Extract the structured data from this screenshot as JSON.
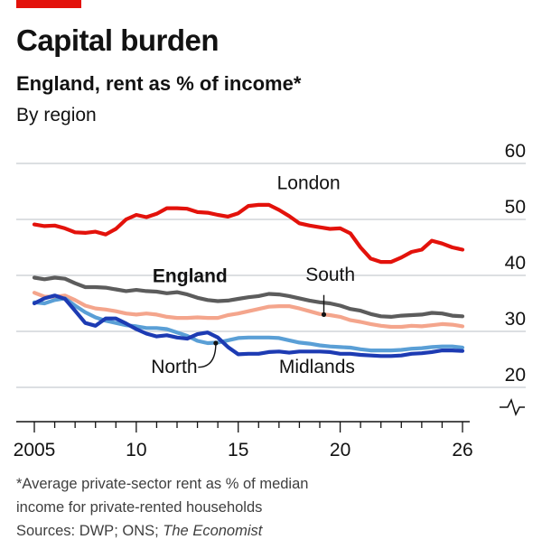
{
  "header": {
    "title": "Capital burden",
    "subtitle": "England, rent as % of income*",
    "subsubtitle": "By region"
  },
  "footnote": {
    "line1": "*Average private-sector rent as % of median",
    "line2": "income for private-rented households",
    "sources_prefix": "Sources: DWP; ONS; ",
    "sources_italic": "The Economist"
  },
  "chart_data": {
    "type": "line",
    "xlabel": "",
    "ylabel": "",
    "xlim": [
      2005,
      2026
    ],
    "ylim": [
      20,
      60
    ],
    "x_ticks": [
      2005,
      2006,
      2007,
      2008,
      2009,
      2010,
      2011,
      2012,
      2013,
      2014,
      2015,
      2016,
      2017,
      2018,
      2019,
      2020,
      2021,
      2022,
      2023,
      2024,
      2025,
      2026
    ],
    "x_tick_labels": [
      {
        "x": 2005,
        "label": "2005"
      },
      {
        "x": 2010,
        "label": "10"
      },
      {
        "x": 2015,
        "label": "15"
      },
      {
        "x": 2020,
        "label": "20"
      },
      {
        "x": 2026,
        "label": "26"
      }
    ],
    "y_ticks": [
      20,
      30,
      40,
      50,
      60
    ],
    "y_tick_labels": [
      "20",
      "30",
      "40",
      "50",
      "60"
    ],
    "grid": true,
    "series": [
      {
        "name": "London",
        "color": "#e3120b",
        "bold": false,
        "points": [
          [
            2005.0,
            49.1
          ],
          [
            2005.5,
            48.8
          ],
          [
            2006.0,
            48.9
          ],
          [
            2006.5,
            48.4
          ],
          [
            2007.0,
            47.7
          ],
          [
            2007.5,
            47.6
          ],
          [
            2008.0,
            47.8
          ],
          [
            2008.5,
            47.3
          ],
          [
            2009.0,
            48.3
          ],
          [
            2009.5,
            50.0
          ],
          [
            2010.0,
            50.8
          ],
          [
            2010.5,
            50.4
          ],
          [
            2011.0,
            51.0
          ],
          [
            2011.5,
            52.0
          ],
          [
            2012.0,
            52.0
          ],
          [
            2012.5,
            51.9
          ],
          [
            2013.0,
            51.3
          ],
          [
            2013.5,
            51.2
          ],
          [
            2014.0,
            50.8
          ],
          [
            2014.5,
            50.5
          ],
          [
            2015.0,
            51.1
          ],
          [
            2015.5,
            52.4
          ],
          [
            2016.0,
            52.6
          ],
          [
            2016.5,
            52.6
          ],
          [
            2017.0,
            51.7
          ],
          [
            2017.5,
            50.6
          ],
          [
            2018.0,
            49.3
          ],
          [
            2018.5,
            48.9
          ],
          [
            2019.0,
            48.6
          ],
          [
            2019.5,
            48.3
          ],
          [
            2020.0,
            48.4
          ],
          [
            2020.5,
            47.5
          ],
          [
            2021.0,
            45.0
          ],
          [
            2021.5,
            43.0
          ],
          [
            2022.0,
            42.4
          ],
          [
            2022.5,
            42.4
          ],
          [
            2023.0,
            43.2
          ],
          [
            2023.5,
            44.2
          ],
          [
            2024.0,
            44.6
          ],
          [
            2024.5,
            46.2
          ],
          [
            2025.0,
            45.7
          ],
          [
            2025.5,
            45.0
          ],
          [
            2026.0,
            44.6
          ]
        ]
      },
      {
        "name": "England",
        "color": "#5c5c5c",
        "bold": true,
        "points": [
          [
            2005.0,
            39.6
          ],
          [
            2005.5,
            39.3
          ],
          [
            2006.0,
            39.6
          ],
          [
            2006.5,
            39.4
          ],
          [
            2007.0,
            38.6
          ],
          [
            2007.5,
            37.9
          ],
          [
            2008.0,
            37.9
          ],
          [
            2008.5,
            37.8
          ],
          [
            2009.0,
            37.5
          ],
          [
            2009.5,
            37.2
          ],
          [
            2010.0,
            37.4
          ],
          [
            2010.5,
            37.2
          ],
          [
            2011.0,
            37.1
          ],
          [
            2011.5,
            36.8
          ],
          [
            2012.0,
            37.0
          ],
          [
            2012.5,
            36.6
          ],
          [
            2013.0,
            36.0
          ],
          [
            2013.5,
            35.6
          ],
          [
            2014.0,
            35.4
          ],
          [
            2014.5,
            35.5
          ],
          [
            2015.0,
            35.8
          ],
          [
            2015.5,
            36.1
          ],
          [
            2016.0,
            36.3
          ],
          [
            2016.5,
            36.7
          ],
          [
            2017.0,
            36.6
          ],
          [
            2017.5,
            36.3
          ],
          [
            2018.0,
            35.9
          ],
          [
            2018.5,
            35.5
          ],
          [
            2019.0,
            35.2
          ],
          [
            2019.5,
            35.0
          ],
          [
            2020.0,
            34.6
          ],
          [
            2020.5,
            34.0
          ],
          [
            2021.0,
            33.7
          ],
          [
            2021.5,
            33.1
          ],
          [
            2022.0,
            32.7
          ],
          [
            2022.5,
            32.6
          ],
          [
            2023.0,
            32.8
          ],
          [
            2023.5,
            32.9
          ],
          [
            2024.0,
            33.0
          ],
          [
            2024.5,
            33.3
          ],
          [
            2025.0,
            33.2
          ],
          [
            2025.5,
            32.8
          ],
          [
            2026.0,
            32.7
          ]
        ]
      },
      {
        "name": "South",
        "color": "#f4a58c",
        "bold": false,
        "points": [
          [
            2005.0,
            36.9
          ],
          [
            2005.5,
            36.2
          ],
          [
            2006.0,
            36.2
          ],
          [
            2006.5,
            36.4
          ],
          [
            2007.0,
            35.6
          ],
          [
            2007.5,
            34.6
          ],
          [
            2008.0,
            34.1
          ],
          [
            2008.5,
            33.9
          ],
          [
            2009.0,
            33.6
          ],
          [
            2009.5,
            33.2
          ],
          [
            2010.0,
            33.0
          ],
          [
            2010.5,
            33.2
          ],
          [
            2011.0,
            33.0
          ],
          [
            2011.5,
            32.6
          ],
          [
            2012.0,
            32.4
          ],
          [
            2012.5,
            32.4
          ],
          [
            2013.0,
            32.5
          ],
          [
            2013.5,
            32.4
          ],
          [
            2014.0,
            32.4
          ],
          [
            2014.5,
            32.9
          ],
          [
            2015.0,
            33.2
          ],
          [
            2015.5,
            33.6
          ],
          [
            2016.0,
            34.0
          ],
          [
            2016.5,
            34.4
          ],
          [
            2017.0,
            34.5
          ],
          [
            2017.5,
            34.5
          ],
          [
            2018.0,
            34.1
          ],
          [
            2018.5,
            33.6
          ],
          [
            2019.0,
            33.1
          ],
          [
            2019.5,
            32.9
          ],
          [
            2020.0,
            32.6
          ],
          [
            2020.5,
            32.0
          ],
          [
            2021.0,
            31.7
          ],
          [
            2021.5,
            31.3
          ],
          [
            2022.0,
            31.0
          ],
          [
            2022.5,
            30.8
          ],
          [
            2023.0,
            30.8
          ],
          [
            2023.5,
            31.0
          ],
          [
            2024.0,
            30.9
          ],
          [
            2024.5,
            31.1
          ],
          [
            2025.0,
            31.3
          ],
          [
            2025.5,
            31.2
          ],
          [
            2026.0,
            30.9
          ]
        ]
      },
      {
        "name": "North",
        "color": "#5a9fd6",
        "bold": false,
        "points": [
          [
            2005.0,
            35.2
          ],
          [
            2005.5,
            35.0
          ],
          [
            2006.0,
            35.6
          ],
          [
            2006.5,
            35.9
          ],
          [
            2007.0,
            34.6
          ],
          [
            2007.5,
            33.4
          ],
          [
            2008.0,
            32.5
          ],
          [
            2008.5,
            31.9
          ],
          [
            2009.0,
            31.5
          ],
          [
            2009.5,
            31.1
          ],
          [
            2010.0,
            30.9
          ],
          [
            2010.5,
            30.6
          ],
          [
            2011.0,
            30.6
          ],
          [
            2011.5,
            30.4
          ],
          [
            2012.0,
            29.8
          ],
          [
            2012.5,
            29.2
          ],
          [
            2013.0,
            28.3
          ],
          [
            2013.5,
            27.9
          ],
          [
            2014.0,
            28.0
          ],
          [
            2014.5,
            28.4
          ],
          [
            2015.0,
            28.8
          ],
          [
            2015.5,
            28.9
          ],
          [
            2016.0,
            28.9
          ],
          [
            2016.5,
            28.9
          ],
          [
            2017.0,
            28.8
          ],
          [
            2017.5,
            28.4
          ],
          [
            2018.0,
            28.0
          ],
          [
            2018.5,
            27.8
          ],
          [
            2019.0,
            27.5
          ],
          [
            2019.5,
            27.3
          ],
          [
            2020.0,
            27.2
          ],
          [
            2020.5,
            27.1
          ],
          [
            2021.0,
            26.8
          ],
          [
            2021.5,
            26.6
          ],
          [
            2022.0,
            26.6
          ],
          [
            2022.5,
            26.6
          ],
          [
            2023.0,
            26.7
          ],
          [
            2023.5,
            26.9
          ],
          [
            2024.0,
            27.0
          ],
          [
            2024.5,
            27.2
          ],
          [
            2025.0,
            27.3
          ],
          [
            2025.5,
            27.3
          ],
          [
            2026.0,
            27.1
          ]
        ]
      },
      {
        "name": "Midlands",
        "color": "#1d3bb3",
        "bold": false,
        "points": [
          [
            2005.0,
            35.0
          ],
          [
            2005.5,
            35.9
          ],
          [
            2006.0,
            36.4
          ],
          [
            2006.5,
            35.8
          ],
          [
            2007.0,
            33.7
          ],
          [
            2007.5,
            31.5
          ],
          [
            2008.0,
            31.0
          ],
          [
            2008.5,
            32.3
          ],
          [
            2009.0,
            32.3
          ],
          [
            2009.5,
            31.4
          ],
          [
            2010.0,
            30.4
          ],
          [
            2010.5,
            29.6
          ],
          [
            2011.0,
            29.1
          ],
          [
            2011.5,
            29.3
          ],
          [
            2012.0,
            28.9
          ],
          [
            2012.5,
            28.7
          ],
          [
            2013.0,
            29.5
          ],
          [
            2013.5,
            29.8
          ],
          [
            2014.0,
            28.9
          ],
          [
            2014.5,
            27.2
          ],
          [
            2015.0,
            25.9
          ],
          [
            2015.5,
            26.0
          ],
          [
            2016.0,
            26.0
          ],
          [
            2016.5,
            26.3
          ],
          [
            2017.0,
            26.4
          ],
          [
            2017.5,
            26.2
          ],
          [
            2018.0,
            26.4
          ],
          [
            2018.5,
            26.4
          ],
          [
            2019.0,
            26.4
          ],
          [
            2019.5,
            26.3
          ],
          [
            2020.0,
            26.0
          ],
          [
            2020.5,
            26.0
          ],
          [
            2021.0,
            25.8
          ],
          [
            2021.5,
            25.7
          ],
          [
            2022.0,
            25.6
          ],
          [
            2022.5,
            25.6
          ],
          [
            2023.0,
            25.7
          ],
          [
            2023.5,
            26.0
          ],
          [
            2024.0,
            26.1
          ],
          [
            2024.5,
            26.3
          ],
          [
            2025.0,
            26.6
          ],
          [
            2025.5,
            26.6
          ],
          [
            2026.0,
            26.5
          ]
        ]
      }
    ],
    "annotations": [
      {
        "text": "London",
        "series": "London",
        "x": 2016.9,
        "y": 55.4,
        "anchor": "start",
        "bold": false
      },
      {
        "text": "England",
        "series": "England",
        "x": 2010.8,
        "y": 38.8,
        "anchor": "start",
        "bold": true
      },
      {
        "text": "South",
        "series": "South",
        "x": 2018.3,
        "y": 39.0,
        "anchor": "start",
        "bold": false,
        "leader": [
          [
            2019.2,
            36.5
          ],
          [
            2019.2,
            33.0
          ]
        ]
      },
      {
        "text": "North",
        "series": "North",
        "x": 2013.0,
        "y": 22.6,
        "anchor": "end",
        "bold": false,
        "leader": [
          [
            2013.3,
            23.6
          ],
          [
            2013.9,
            27.9
          ]
        ]
      },
      {
        "text": "Midlands",
        "series": "Midlands",
        "x": 2017.0,
        "y": 22.6,
        "anchor": "start",
        "bold": false
      }
    ],
    "axis_break": true
  }
}
